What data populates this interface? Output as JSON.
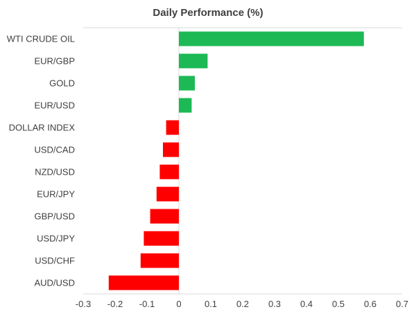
{
  "chart_data": {
    "type": "bar",
    "orientation": "horizontal",
    "title": "Daily Performance (%)",
    "xlabel": "",
    "ylabel": "",
    "xlim": [
      -0.3,
      0.7
    ],
    "xticks": [
      -0.3,
      -0.2,
      -0.1,
      0,
      0.1,
      0.2,
      0.3,
      0.4,
      0.5,
      0.6,
      0.7
    ],
    "xtick_labels": [
      "-0.3",
      "-0.2",
      "-0.1",
      "0",
      "0.1",
      "0.2",
      "0.3",
      "0.4",
      "0.5",
      "0.6",
      "0.7"
    ],
    "categories": [
      "WTI CRUDE OIL",
      "EUR/GBP",
      "GOLD",
      "EUR/USD",
      "DOLLAR INDEX",
      "USD/CAD",
      "NZD/USD",
      "EUR/JPY",
      "GBP/USD",
      "USD/JPY",
      "USD/CHF",
      "AUD/USD"
    ],
    "values": [
      0.58,
      0.09,
      0.05,
      0.04,
      -0.04,
      -0.05,
      -0.06,
      -0.07,
      -0.09,
      -0.11,
      -0.12,
      -0.22
    ],
    "grid": false,
    "legend": "none",
    "colors": {
      "positive": "#1db954",
      "negative": "#ff0000",
      "axis": "#d9d9d9",
      "text": "#404040"
    }
  }
}
